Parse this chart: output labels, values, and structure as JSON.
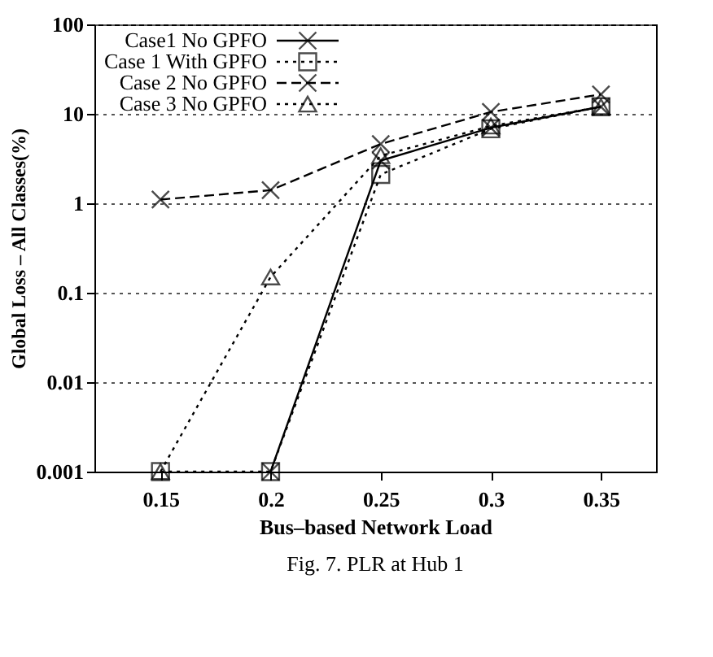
{
  "chart_data": {
    "type": "line",
    "xlabel": "Bus–based Network Load",
    "ylabel": "Global Loss – All Classes(%)",
    "x": [
      0.15,
      0.2,
      0.25,
      0.3,
      0.35
    ],
    "series": [
      {
        "name": "Case1 No GPFO",
        "color": "#000000",
        "marker": "cross",
        "line_style": "solid",
        "values": [
          null,
          0.001,
          3,
          7,
          12
        ]
      },
      {
        "name": "Case 1 With GPFO",
        "color": "#000000",
        "marker": "square",
        "line_style": "dotted",
        "values": [
          0.001,
          0.001,
          2.1,
          6.8,
          12
        ]
      },
      {
        "name": "Case 2 No GPFO",
        "color": "#000000",
        "marker": "cross",
        "line_style": "dashed",
        "values": [
          1.1,
          1.4,
          4.6,
          10.5,
          16.5
        ]
      },
      {
        "name": "Case 3 No GPFO",
        "color": "#000000",
        "marker": "triangle",
        "line_style": "dotted",
        "values": [
          0.001,
          0.15,
          3.4,
          7.3,
          12
        ]
      }
    ],
    "xlim": [
      0.12,
      0.375
    ],
    "xticks": [
      0.15,
      0.2,
      0.25,
      0.3,
      0.35
    ],
    "ylim": [
      0.001,
      100
    ],
    "yticks": [
      0.001,
      0.01,
      0.1,
      1,
      10,
      100
    ],
    "log": "y",
    "grid": "y",
    "legend": "top left",
    "annotations": [
      "Fig. 7. PLR at Hub 1"
    ]
  }
}
